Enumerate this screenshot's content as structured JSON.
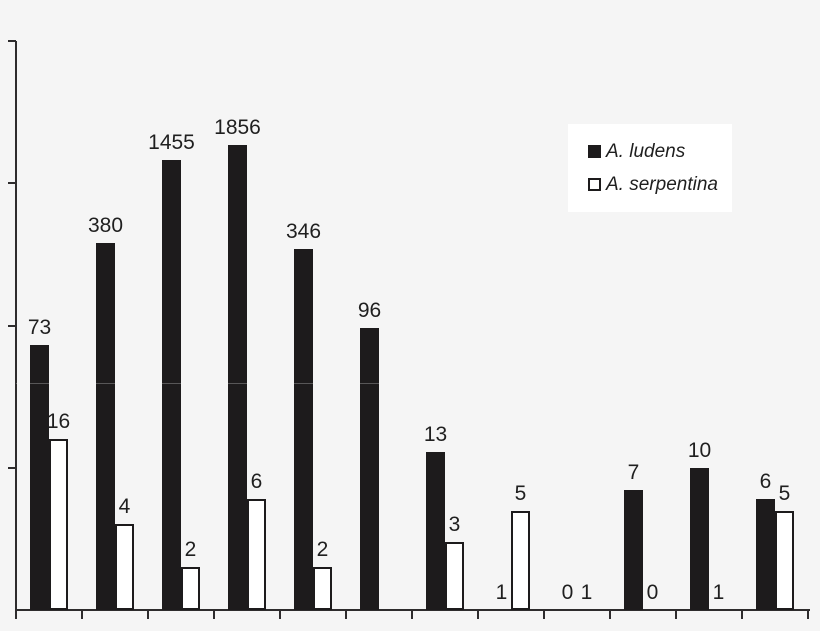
{
  "legend": {
    "items": [
      {
        "label": "A. ludens",
        "swatch": "filled-square"
      },
      {
        "label": "A. serpentina",
        "swatch": "open-square"
      }
    ]
  },
  "colors": {
    "background": "#f5f5f5",
    "bar_fill": "#1d1b1c",
    "bar_open_fill": "#ffffff",
    "axis": "#2e2c2d",
    "text": "#1f1f1f",
    "legend_background": "#ffffff"
  },
  "chart_data": {
    "type": "bar",
    "title": "",
    "xlabel": "",
    "ylabel": "",
    "scale": "log10",
    "ylim": [
      1,
      10000
    ],
    "y_tick_values": [
      1,
      10,
      100,
      1000,
      10000
    ],
    "y_tick_labels_shown": false,
    "x_tick_labels_shown": false,
    "grid": false,
    "legend_position": "upper-right",
    "value_labels": true,
    "n_groups": 12,
    "categories": [
      "",
      "",
      "",
      "",
      "",
      "",
      "",
      "",
      "",
      "",
      "",
      ""
    ],
    "series": [
      {
        "name": "A. ludens",
        "style": "filled",
        "values": [
          73,
          380,
          1455,
          1856,
          346,
          96,
          13,
          1,
          0,
          7,
          10,
          6
        ]
      },
      {
        "name": "A. serpentina",
        "style": "open",
        "values": [
          16,
          4,
          2,
          6,
          2,
          null,
          3,
          5,
          1,
          0,
          1,
          5
        ]
      }
    ]
  }
}
